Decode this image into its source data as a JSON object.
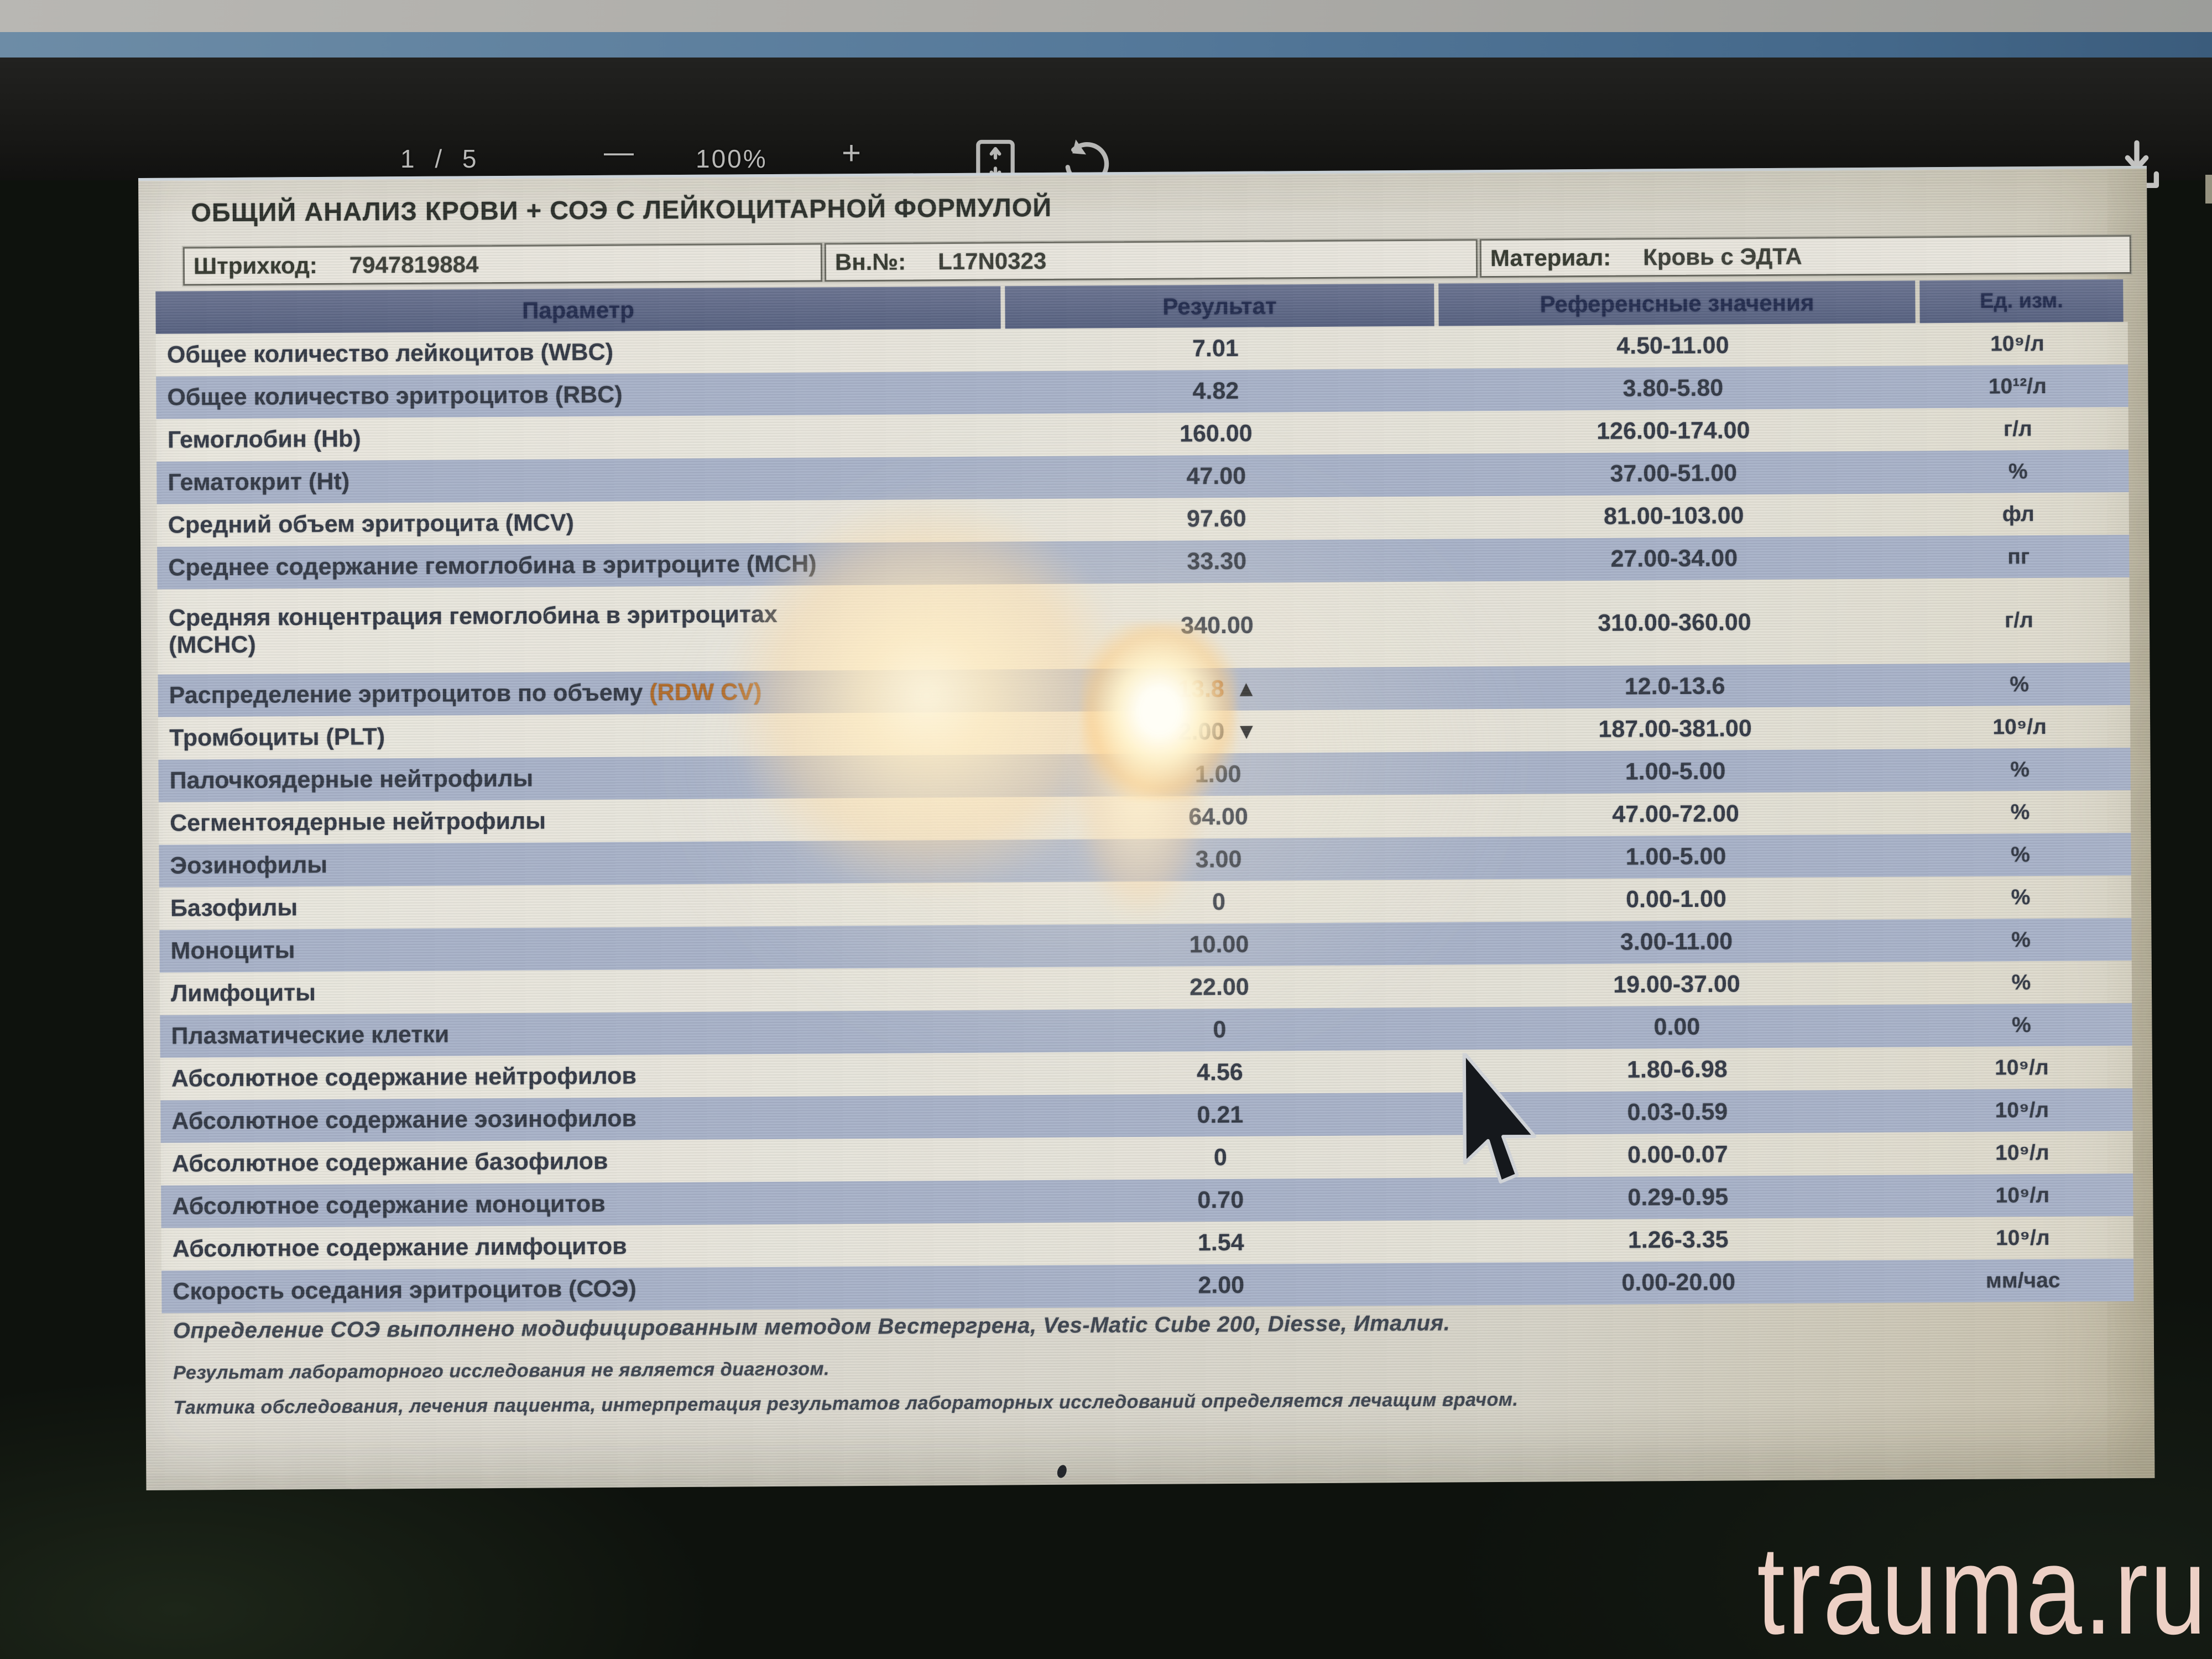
{
  "viewer": {
    "page_indicator": "1 / 5",
    "zoom_out_label": "—",
    "zoom_level": "100%",
    "zoom_in_label": "+"
  },
  "report": {
    "title": "ОБЩИЙ АНАЛИЗ КРОВИ + СОЭ С ЛЕЙКОЦИТАРНОЙ ФОРМУЛОЙ",
    "header_fields": [
      {
        "label": "Штрихкод:",
        "value": "7947819884"
      },
      {
        "label": "Вн.№:",
        "value": "L17N0323"
      },
      {
        "label": "Материал:",
        "value": "Кровь с ЭДТА"
      }
    ],
    "table": {
      "columns": [
        "Параметр",
        "Результат",
        "Референсные значения",
        "Ед. изм."
      ],
      "rows": [
        {
          "param": "Общее количество лейкоцитов (WBC)",
          "result": "7.01",
          "ref": "4.50-11.00",
          "unit": "10⁹/л"
        },
        {
          "param": "Общее количество эритроцитов (RBC)",
          "result": "4.82",
          "ref": "3.80-5.80",
          "unit": "10¹²/л"
        },
        {
          "param": "Гемоглобин (Hb)",
          "result": "160.00",
          "ref": "126.00-174.00",
          "unit": "г/л"
        },
        {
          "param": "Гематокрит (Ht)",
          "result": "47.00",
          "ref": "37.00-51.00",
          "unit": "%"
        },
        {
          "param": "Средний объем эритроцита (MCV)",
          "result": "97.60",
          "ref": "81.00-103.00",
          "unit": "фл"
        },
        {
          "param": "Среднее содержание гемоглобина в эритроците (MCH)",
          "result": "33.30",
          "ref": "27.00-34.00",
          "unit": "пг"
        },
        {
          "param": "Средняя концентрация гемоглобина в эритроцитах",
          "param_line2": "(MCHC)",
          "result": "340.00",
          "ref": "310.00-360.00",
          "unit": "г/л",
          "tall": true
        },
        {
          "param": "Распределение эритроцитов по объему ",
          "param_accent": "(RDW CV)",
          "result": "13.8",
          "result_accent": true,
          "flag": "▲",
          "ref": "12.0-13.6",
          "unit": "%"
        },
        {
          "param": "Тромбоциты (PLT)",
          "result": "2.00",
          "flag": "▼",
          "ref": "187.00-381.00",
          "unit": "10⁹/л"
        },
        {
          "param": "Палочкоядерные нейтрофилы",
          "result": "1.00",
          "ref": "1.00-5.00",
          "unit": "%"
        },
        {
          "param": "Сегментоядерные нейтрофилы",
          "result": "64.00",
          "ref": "47.00-72.00",
          "unit": "%"
        },
        {
          "param": "Эозинофилы",
          "result": "3.00",
          "ref": "1.00-5.00",
          "unit": "%"
        },
        {
          "param": "Базофилы",
          "result": "0",
          "ref": "0.00-1.00",
          "unit": "%"
        },
        {
          "param": "Моноциты",
          "result": "10.00",
          "ref": "3.00-11.00",
          "unit": "%"
        },
        {
          "param": "Лимфоциты",
          "result": "22.00",
          "ref": "19.00-37.00",
          "unit": "%"
        },
        {
          "param": "Плазматические клетки",
          "result": "0",
          "ref": "0.00",
          "unit": "%"
        },
        {
          "param": "Абсолютное содержание нейтрофилов",
          "result": "4.56",
          "ref": "1.80-6.98",
          "unit": "10⁹/л"
        },
        {
          "param": "Абсолютное содержание эозинофилов",
          "result": "0.21",
          "ref": "0.03-0.59",
          "unit": "10⁹/л"
        },
        {
          "param": "Абсолютное содержание базофилов",
          "result": "0",
          "ref": "0.00-0.07",
          "unit": "10⁹/л"
        },
        {
          "param": "Абсолютное содержание моноцитов",
          "result": "0.70",
          "ref": "0.29-0.95",
          "unit": "10⁹/л"
        },
        {
          "param": "Абсолютное содержание лимфоцитов",
          "result": "1.54",
          "ref": "1.26-3.35",
          "unit": "10⁹/л"
        },
        {
          "param": "Скорость оседания эритроцитов (СОЭ)",
          "result": "2.00",
          "ref": "0.00-20.00",
          "unit": "мм/час"
        }
      ]
    },
    "notes": [
      "Определение СОЭ выполнено модифицированным методом Вестергрена, Ves-Matic Cube 200, Diesse, Италия.",
      "Результат лабораторного исследования не является диагнозом.",
      "Тактика обследования, лечения пациента, интерпретация результатов лабораторных исследований определяется лечащим врачом."
    ]
  },
  "watermark": "trauma.ru",
  "colors": {
    "row_blue": "#a8b2c8",
    "table_header_bg": "#5f6986",
    "table_header_text": "#232c4e",
    "paper": "#dcd9cf",
    "accent_warm": "#b06a28",
    "rdw_value": "#8a4616",
    "watermark_pink": "#edd0c5",
    "toolbar_bg": "#171715"
  }
}
